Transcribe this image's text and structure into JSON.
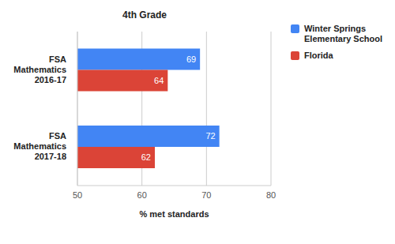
{
  "chart_data": {
    "type": "bar",
    "title": "4th Grade",
    "orientation": "horizontal",
    "categories": [
      "FSA Mathematics 2016-17",
      "FSA Mathematics 2017-18"
    ],
    "series": [
      {
        "name": "Winter Springs Elementary School",
        "color": "#4285f4",
        "values": [
          69,
          72
        ]
      },
      {
        "name": "Florida",
        "color": "#db4437",
        "values": [
          64,
          62
        ]
      }
    ],
    "xlabel": "% met standards",
    "xlim": [
      50,
      80
    ],
    "xticks": [
      50,
      60,
      70,
      80
    ],
    "grid": true,
    "data_labels": true,
    "legend": "right"
  }
}
